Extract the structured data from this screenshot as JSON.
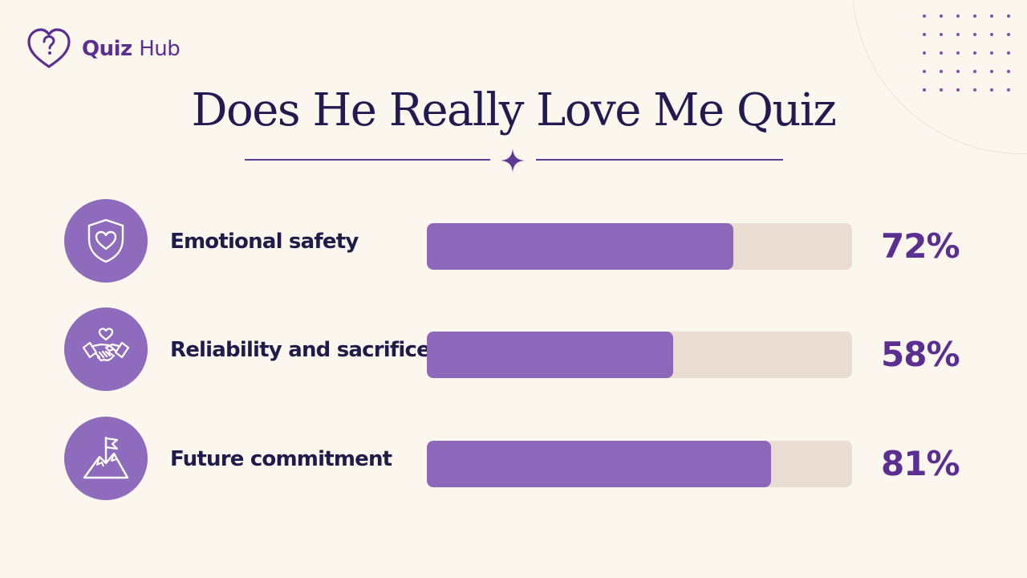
{
  "brand": {
    "name_bold": "Quiz",
    "name_light": "Hub",
    "logo_icon": "heart-question-icon"
  },
  "title": "Does He Really Love Me Quiz",
  "colors": {
    "background": "#fbf6ee",
    "accent": "#5b2f92",
    "bar_fill": "#8d68ba",
    "bar_track": "#e8ddd0",
    "icon_circle": "#8e6bbd",
    "title": "#231a52"
  },
  "metrics": [
    {
      "label": "Emotional safety",
      "percent_text": "72%",
      "value": 72,
      "icon": "shield-heart-icon"
    },
    {
      "label": "Reliability and sacrifice",
      "percent_text": "58%",
      "value": 58,
      "icon": "handshake-heart-icon"
    },
    {
      "label": "Future commitment",
      "percent_text": "81%",
      "value": 81,
      "icon": "mountain-flag-icon"
    }
  ]
}
